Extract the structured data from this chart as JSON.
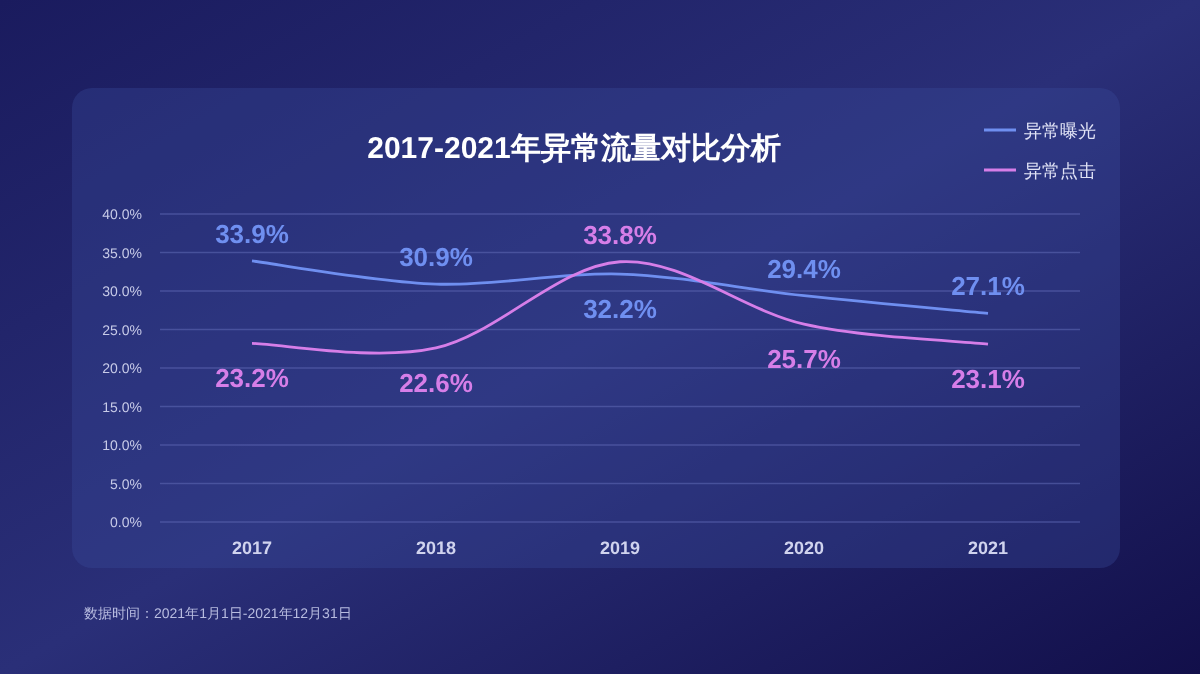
{
  "chart_data": {
    "type": "line",
    "title": "2017-2021年异常流量对比分析",
    "categories": [
      "2017",
      "2018",
      "2019",
      "2020",
      "2021"
    ],
    "series": [
      {
        "name": "异常曝光",
        "color": "#6f8ff0",
        "values": [
          33.9,
          30.9,
          32.2,
          29.4,
          27.1
        ],
        "value_labels": [
          "33.9%",
          "30.9%",
          "32.2%",
          "29.4%",
          "27.1%"
        ]
      },
      {
        "name": "异常点击",
        "color": "#d67ee8",
        "values": [
          23.2,
          22.6,
          33.8,
          25.7,
          23.1
        ],
        "value_labels": [
          "23.2%",
          "22.6%",
          "33.8%",
          "25.7%",
          "23.1%"
        ]
      }
    ],
    "ylim": [
      0,
      40
    ],
    "yticks": [
      {
        "value": 0,
        "label": "0.0%"
      },
      {
        "value": 5,
        "label": "5.0%"
      },
      {
        "value": 10,
        "label": "10.0%"
      },
      {
        "value": 15,
        "label": "15.0%"
      },
      {
        "value": 20,
        "label": "20.0%"
      },
      {
        "value": 25,
        "label": "25.0%"
      },
      {
        "value": 30,
        "label": "30.0%"
      },
      {
        "value": 35,
        "label": "35.0%"
      },
      {
        "value": 40,
        "label": "40.0%"
      }
    ],
    "grid": "y",
    "legend": "top right",
    "marker": "none",
    "line_style": "solid",
    "annotations": [
      "数据时间：2021年1月1日-2021年12月31日"
    ]
  }
}
